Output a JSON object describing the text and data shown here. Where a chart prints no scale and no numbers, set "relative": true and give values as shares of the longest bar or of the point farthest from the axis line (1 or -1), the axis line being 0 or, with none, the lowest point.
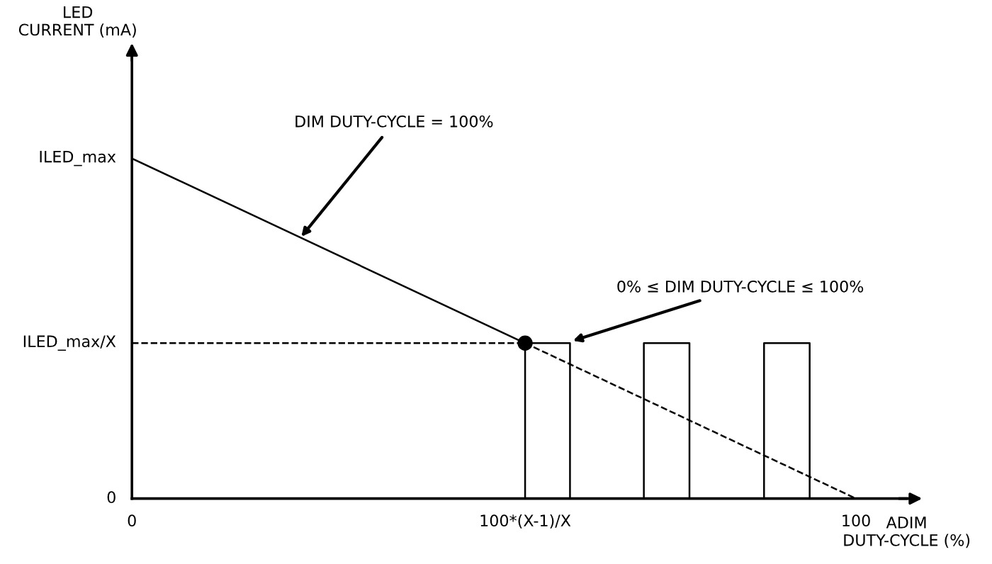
{
  "chart_data": {
    "type": "line",
    "relative": true,
    "xlabel": "ADIM\nDUTY-CYCLE (%)",
    "xlim": [
      0,
      107
    ],
    "xticks": [
      0,
      {
        "value": 54.3,
        "label": "100*(X-1)/X"
      },
      100
    ],
    "grid": false,
    "legend": false,
    "series": [
      {
        "color": "#000000",
        "line_style": "solid",
        "x": [
          0,
          54.3
        ],
        "values": [
          1,
          0.457
        ]
      },
      {
        "color": "#000000",
        "line_style": "dashed",
        "x": [
          54.3,
          100
        ],
        "values": [
          0.457,
          0
        ]
      },
      {
        "color": "#000000",
        "line_style": "dashed",
        "x": [
          0,
          54.3
        ],
        "values": [
          0.457,
          0.457
        ]
      },
      {
        "color": "#000000",
        "line_style": "solid",
        "x": [
          54.3,
          54.3,
          60.5,
          60.5,
          70.7,
          70.7,
          77.0,
          77.0,
          87.3,
          87.3,
          93.6,
          93.6
        ],
        "values": [
          0,
          0.457,
          0.457,
          0,
          0,
          0.457,
          0.457,
          0,
          0,
          0.457,
          0.457,
          0
        ]
      },
      {
        "type": "scatter",
        "color": "#000000",
        "marker": "circle",
        "x": [
          54.3
        ],
        "values": [
          0.457
        ]
      }
    ],
    "annotations": [
      {
        "text": "DIM DUTY-CYCLE = 100%",
        "x": 23.4,
        "y": 0.77
      },
      {
        "text": "0% ≤ DIM DUTY-CYCLE ≤ 100%",
        "x": 60.9,
        "y": 0.464
      },
      {
        "text": "ILED_max",
        "x": 0,
        "y": 1
      },
      {
        "text": "ILED_max/X",
        "x": 0,
        "y": 0.457
      },
      "LED\nCURRENT (mA)",
      "0"
    ]
  }
}
